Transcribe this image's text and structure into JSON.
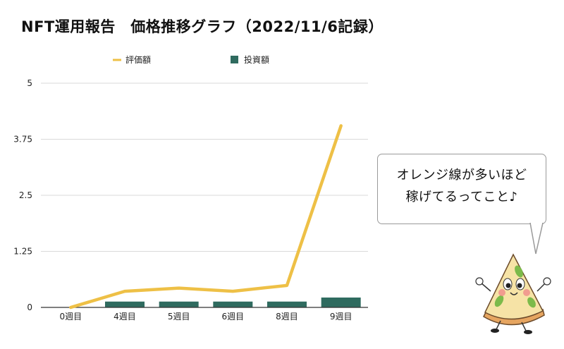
{
  "title": "NFT運用報告　価格推移グラフ（2022/11/6記録）",
  "colors": {
    "evaluation": "#eec046",
    "investment": "#2f6b5f",
    "grid": "#d9d9d9",
    "axis": "#333333",
    "text": "#222222"
  },
  "callout": {
    "line1": "オレンジ線が多いほど",
    "line2": "稼げてるってこと♪"
  },
  "mascot": {
    "icon": "pizza-mascot"
  },
  "chart_data": {
    "type": "bar+line",
    "categories": [
      "0週目",
      "4週目",
      "5週目",
      "6週目",
      "8週目",
      "9週目"
    ],
    "series": [
      {
        "name": "評価額",
        "type": "line",
        "values": [
          0,
          0.36,
          0.43,
          0.36,
          0.49,
          4.05
        ]
      },
      {
        "name": "投資額",
        "type": "bar",
        "values": [
          0,
          0.13,
          0.13,
          0.13,
          0.13,
          0.22
        ]
      }
    ],
    "ylim": [
      0,
      5
    ],
    "yticks": [
      "0",
      "1.25",
      "2.5",
      "3.75",
      "5"
    ],
    "grid": true,
    "legend": "top"
  }
}
